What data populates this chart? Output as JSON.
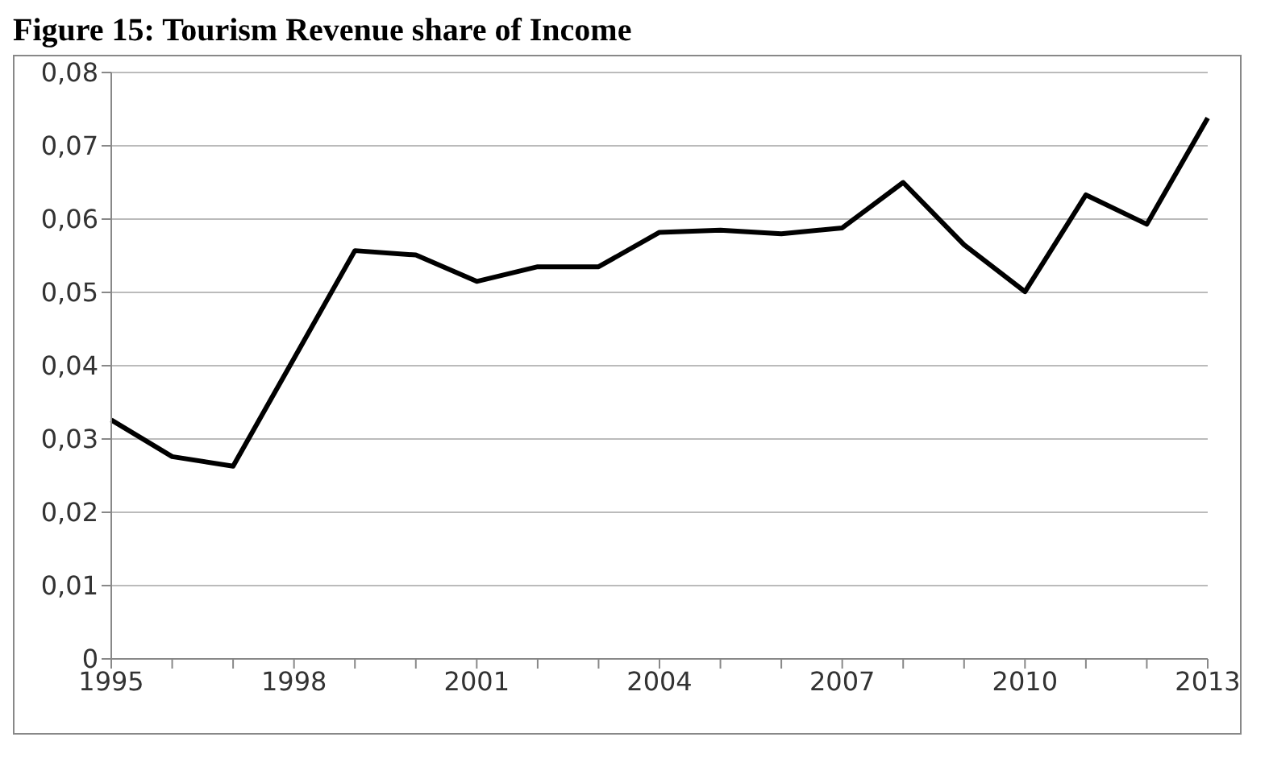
{
  "chart_data": {
    "type": "line",
    "title": "Figure 15: Tourism Revenue share of Income",
    "categories": [
      "1995",
      null,
      null,
      "1998",
      null,
      null,
      "2001",
      null,
      null,
      "2004",
      null,
      null,
      "2007",
      null,
      null,
      "2010",
      null,
      null,
      "2013"
    ],
    "series": [
      {
        "color": "#000000",
        "values": [
          0.0326,
          0.0276,
          0.0263,
          0.041,
          0.0557,
          0.0551,
          0.0515,
          0.0535,
          0.0535,
          0.0582,
          0.0585,
          0.058,
          0.0588,
          0.065,
          0.0565,
          0.0501,
          0.0633,
          0.0593,
          0.0738
        ]
      }
    ],
    "ylim": [
      0,
      0.08
    ],
    "yticks": [
      0,
      {
        "value": 0.01,
        "label": "0,01"
      },
      {
        "value": 0.02,
        "label": "0,02"
      },
      {
        "value": 0.03,
        "label": "0,03"
      },
      {
        "value": 0.04,
        "label": "0,04"
      },
      {
        "value": 0.05,
        "label": "0,05"
      },
      {
        "value": 0.06,
        "label": "0,06"
      },
      {
        "value": 0.07,
        "label": "0,07"
      },
      {
        "value": 0.08,
        "label": "0,08"
      }
    ],
    "grid": "y",
    "marker": "none",
    "line_style": "solid"
  }
}
